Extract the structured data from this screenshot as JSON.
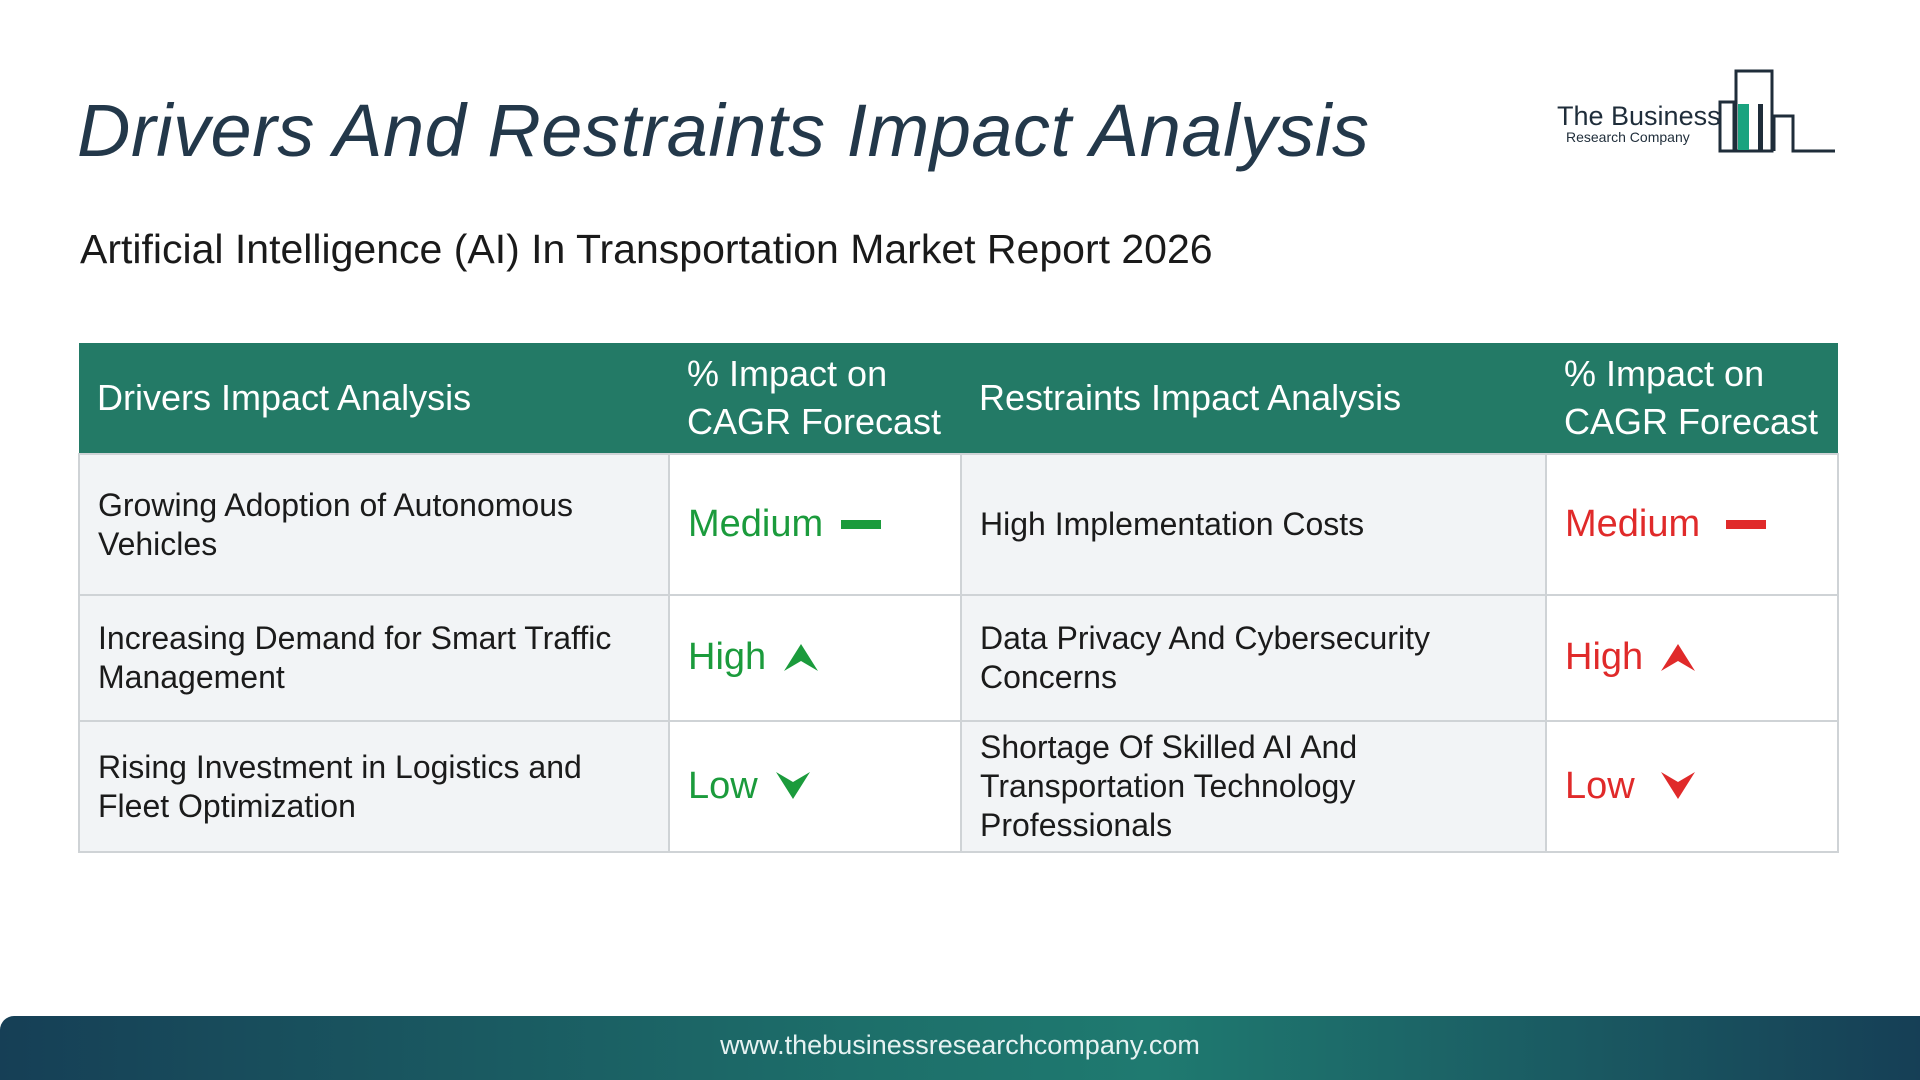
{
  "page": {
    "title": "Drivers And Restraints Impact Analysis",
    "subtitle": "Artificial Intelligence (AI) In Transportation Market Report 2026"
  },
  "logo": {
    "line1": "The Business",
    "line2": "Research Company"
  },
  "table": {
    "headers": {
      "drivers": "Drivers Impact Analysis",
      "drivers_impact": "% Impact on CAGR Forecast",
      "restraints": "Restraints Impact Analysis",
      "restraints_impact": "% Impact on CAGR Forecast"
    },
    "rows": [
      {
        "driver": "Growing Adoption of Autonomous Vehicles",
        "driver_level": "Medium",
        "driver_icon": "dash-icon",
        "restraint": "High Implementation Costs",
        "restraint_level": "Medium",
        "restraint_icon": "dash-icon"
      },
      {
        "driver": "Increasing Demand for Smart Traffic Management",
        "driver_level": "High",
        "driver_icon": "arrow-up-icon",
        "restraint": "Data Privacy And Cybersecurity Concerns",
        "restraint_level": "High",
        "restraint_icon": "arrow-up-icon"
      },
      {
        "driver": "Rising Investment in Logistics and Fleet Optimization",
        "driver_level": "Low",
        "driver_icon": "arrow-down-icon",
        "restraint": "Shortage Of Skilled AI And Transportation Technology Professionals",
        "restraint_level": "Low",
        "restraint_icon": "arrow-down-icon"
      }
    ]
  },
  "colors": {
    "header_bg": "#237a66",
    "driver_level": "#1b9b3c",
    "restraint_level": "#e02a2a",
    "title": "#23384a"
  },
  "footer": {
    "url": "www.thebusinessresearchcompany.com"
  }
}
